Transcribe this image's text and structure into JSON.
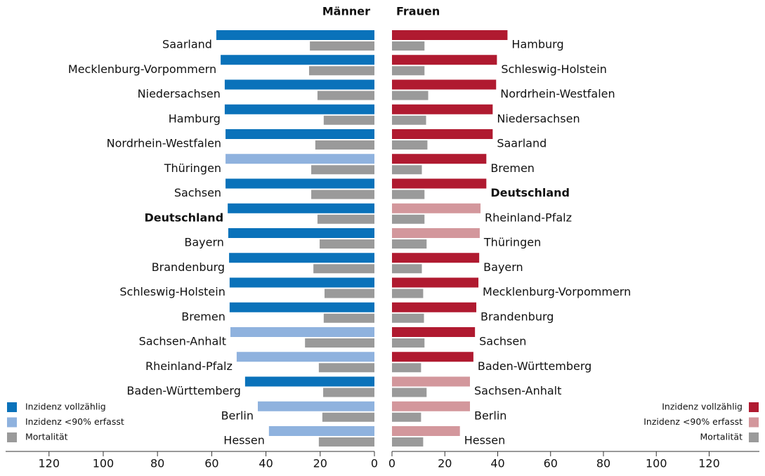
{
  "chart_data": [
    {
      "type": "bar",
      "orientation": "horizontal",
      "direction": "left",
      "title": "Männer",
      "categories": [
        "Saarland",
        "Mecklenburg-Vorpommern",
        "Niedersachsen",
        "Hamburg",
        "Nordrhein-Westfalen",
        "Thüringen",
        "Sachsen",
        "Deutschland",
        "Bayern",
        "Brandenburg",
        "Schleswig-Holstein",
        "Bremen",
        "Sachsen-Anhalt",
        "Rheinland-Pfalz",
        "Baden-Württemberg",
        "Berlin",
        "Hessen"
      ],
      "bold_category_index": 7,
      "series": [
        {
          "name": "Inzidenz vollzählig",
          "color": "#0a72ba",
          "values": [
            58.3,
            56.7,
            55.2,
            55.2,
            54.9,
            null,
            54.9,
            54.1,
            53.9,
            53.6,
            53.4,
            53.4,
            null,
            null,
            47.7,
            null,
            null
          ]
        },
        {
          "name": "Inzidenz <90% erfasst",
          "color": "#8fb2de",
          "values": [
            null,
            null,
            null,
            null,
            null,
            54.9,
            null,
            null,
            null,
            null,
            null,
            null,
            53.1,
            50.8,
            null,
            43.0,
            38.9
          ]
        },
        {
          "name": "Mortalität",
          "color": "#9a9a9a",
          "values": [
            23.8,
            24.1,
            21.0,
            18.7,
            21.8,
            23.3,
            23.3,
            21.0,
            20.2,
            22.5,
            18.4,
            18.7,
            25.6,
            20.5,
            18.9,
            19.2,
            20.5
          ]
        }
      ],
      "xlim": [
        0,
        136
      ],
      "xticks": [
        0,
        20,
        40,
        60,
        80,
        100,
        120
      ],
      "legend": "bottom-left"
    },
    {
      "type": "bar",
      "orientation": "horizontal",
      "direction": "right",
      "title": "Frauen",
      "categories": [
        "Hamburg",
        "Schleswig-Holstein",
        "Nordrhein-Westfalen",
        "Niedersachsen",
        "Saarland",
        "Bremen",
        "Deutschland",
        "Rheinland-Pfalz",
        "Thüringen",
        "Bayern",
        "Mecklenburg-Vorpommern",
        "Brandenburg",
        "Sachsen",
        "Baden-Württemberg",
        "Sachsen-Anhalt",
        "Berlin",
        "Hessen"
      ],
      "bold_category_index": 6,
      "series": [
        {
          "name": "Inzidenz vollzählig",
          "color": "#b01a30",
          "values": [
            43.7,
            39.7,
            39.4,
            38.1,
            38.1,
            35.7,
            35.7,
            null,
            null,
            33.0,
            32.7,
            31.9,
            31.4,
            30.8,
            null,
            null,
            null
          ]
        },
        {
          "name": "Inzidenz <90% erfasst",
          "color": "#d3979c",
          "values": [
            null,
            null,
            null,
            null,
            null,
            null,
            null,
            33.5,
            33.2,
            null,
            null,
            null,
            null,
            null,
            29.5,
            29.5,
            25.7
          ]
        },
        {
          "name": "Mortalität",
          "color": "#9a9a9a",
          "values": [
            12.3,
            12.3,
            13.7,
            12.9,
            13.4,
            11.3,
            12.3,
            12.3,
            13.1,
            11.3,
            11.8,
            12.1,
            12.3,
            11.0,
            13.1,
            11.0,
            11.8
          ]
        }
      ],
      "xlim": [
        0,
        139
      ],
      "xticks": [
        0,
        20,
        40,
        60,
        80,
        100,
        120
      ],
      "legend": "bottom-right"
    }
  ]
}
